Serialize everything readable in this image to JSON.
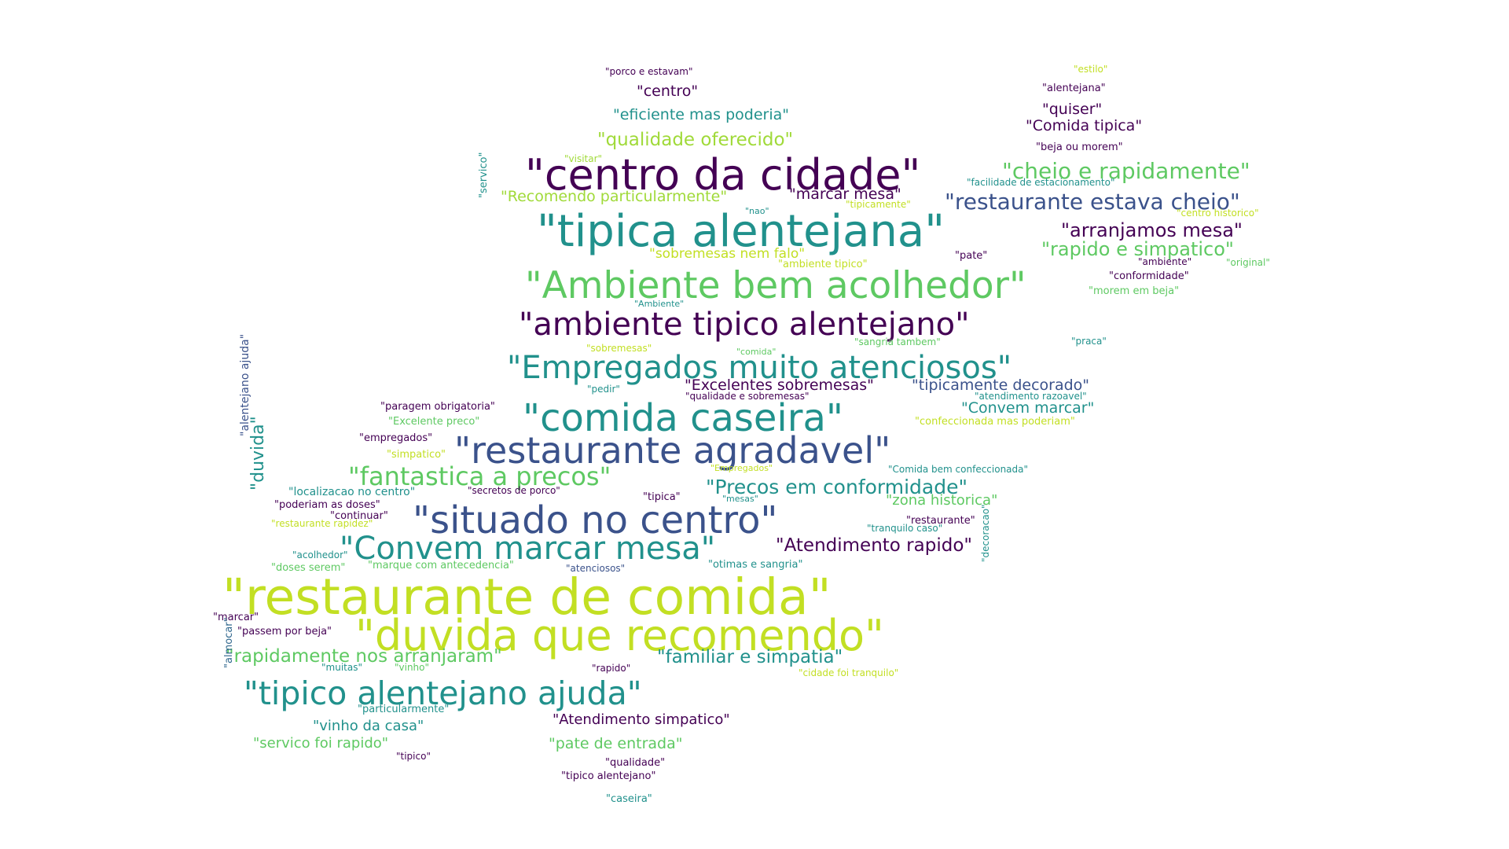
{
  "palette": {
    "p0": "#440154",
    "p1": "#3b528b",
    "p2": "#21918c",
    "p3": "#5ec962",
    "p4": "#c2df23",
    "p5": "#a0da39",
    "p6": "#31688e",
    "p7": "#482878"
  },
  "words": [
    {
      "text": "\"restaurante de comida\"",
      "color": "p4"
    },
    {
      "text": "\"duvida que recomendo\"",
      "color": "p4"
    },
    {
      "text": "\"tipica alentejana\"",
      "color": "p2"
    },
    {
      "text": "\"centro da cidade\"",
      "color": "p0"
    },
    {
      "text": "\"Ambiente bem acolhedor\"",
      "color": "p3"
    },
    {
      "text": "\"comida caseira\"",
      "color": "p2"
    },
    {
      "text": "\"restaurante agradavel\"",
      "color": "p1"
    },
    {
      "text": "\"situado no centro\"",
      "color": "p1"
    },
    {
      "text": "\"Empregados muito atenciosos\"",
      "color": "p2"
    },
    {
      "text": "\"ambiente tipico alentejano\"",
      "color": "p0"
    },
    {
      "text": "\"Convem marcar mesa\"",
      "color": "p2"
    },
    {
      "text": "\"tipico alentejano ajuda\"",
      "color": "p2"
    },
    {
      "text": "\"fantastica a precos\"",
      "color": "p3"
    },
    {
      "text": "\"cheio e rapidamente\"",
      "color": "p3"
    },
    {
      "text": "\"restaurante estava cheio\"",
      "color": "p1"
    },
    {
      "text": "\"arranjamos mesa\"",
      "color": "p0"
    },
    {
      "text": "\"rapido e simpatico\"",
      "color": "p3"
    },
    {
      "text": "\"Precos em conformidade\"",
      "color": "p2"
    },
    {
      "text": "\"Atendimento rapido\"",
      "color": "p0"
    },
    {
      "text": "\"familiar e simpatia\"",
      "color": "p2"
    },
    {
      "text": "\"rapidamente nos arranjaram\"",
      "color": "p3"
    },
    {
      "text": "\"qualidade oferecido\"",
      "color": "p5"
    },
    {
      "text": "\"eficiente mas poderia\"",
      "color": "p2"
    },
    {
      "text": "\"centro\"",
      "color": "p0"
    },
    {
      "text": "\"Comida tipica\"",
      "color": "p0"
    },
    {
      "text": "\"quiser\"",
      "color": "p0"
    },
    {
      "text": "\"Recomendo particularmente\"",
      "color": "p5"
    },
    {
      "text": "\"marcar mesa\"",
      "color": "p0"
    },
    {
      "text": "\"sobremesas nem falo\"",
      "color": "p4"
    },
    {
      "text": "\"Excelentes sobremesas\"",
      "color": "p0"
    },
    {
      "text": "\"tipicamente decorado\"",
      "color": "p1"
    },
    {
      "text": "\"Convem marcar\"",
      "color": "p2"
    },
    {
      "text": "\"zona historica\"",
      "color": "p3"
    },
    {
      "text": "\"vinho da casa\"",
      "color": "p2"
    },
    {
      "text": "\"servico foi rapido\"",
      "color": "p3"
    },
    {
      "text": "\"pate de entrada\"",
      "color": "p3"
    },
    {
      "text": "\"Atendimento simpatico\"",
      "color": "p0"
    },
    {
      "text": "\"duvida\"",
      "color": "p2"
    },
    {
      "text": "\"porco e estavam\"",
      "color": "p0"
    },
    {
      "text": "\"estilo\"",
      "color": "p4"
    },
    {
      "text": "\"alentejana\"",
      "color": "p0"
    },
    {
      "text": "\"beja ou morem\"",
      "color": "p0"
    },
    {
      "text": "\"visitar\"",
      "color": "p5"
    },
    {
      "text": "\"facilidade de estacionamento\"",
      "color": "p2"
    },
    {
      "text": "\"tipicamente\"",
      "color": "p4"
    },
    {
      "text": "\"centro historico\"",
      "color": "p4"
    },
    {
      "text": "\"nao\"",
      "color": "p2"
    },
    {
      "text": "\"servico\"",
      "color": "p2"
    },
    {
      "text": "\"pate\"",
      "color": "p0"
    },
    {
      "text": "\"ambiente tipico\"",
      "color": "p4"
    },
    {
      "text": "\"ambiente\"",
      "color": "p0"
    },
    {
      "text": "\"original\"",
      "color": "p3"
    },
    {
      "text": "\"conformidade\"",
      "color": "p0"
    },
    {
      "text": "\"morem em beja\"",
      "color": "p3"
    },
    {
      "text": "\"Ambiente\"",
      "color": "p2"
    },
    {
      "text": "\"sangria tambem\"",
      "color": "p3"
    },
    {
      "text": "\"praca\"",
      "color": "p2"
    },
    {
      "text": "\"sobremesas\"",
      "color": "p4"
    },
    {
      "text": "\"comida\"",
      "color": "p3"
    },
    {
      "text": "\"pedir\"",
      "color": "p2"
    },
    {
      "text": "\"qualidade e sobremesas\"",
      "color": "p0"
    },
    {
      "text": "\"atendimento razoavel\"",
      "color": "p2"
    },
    {
      "text": "\"paragem obrigatoria\"",
      "color": "p0"
    },
    {
      "text": "\"Excelente preco\"",
      "color": "p3"
    },
    {
      "text": "\"confeccionada mas poderiam\"",
      "color": "p4"
    },
    {
      "text": "\"empregados\"",
      "color": "p0"
    },
    {
      "text": "\"simpatico\"",
      "color": "p4"
    },
    {
      "text": "\"Empregados\"",
      "color": "p4"
    },
    {
      "text": "\"Comida bem confeccionada\"",
      "color": "p2"
    },
    {
      "text": "\"localizacao no centro\"",
      "color": "p2"
    },
    {
      "text": "\"secretos de porco\"",
      "color": "p0"
    },
    {
      "text": "\"tipica\"",
      "color": "p0"
    },
    {
      "text": "\"mesas\"",
      "color": "p2"
    },
    {
      "text": "\"poderiam as doses\"",
      "color": "p0"
    },
    {
      "text": "\"continuar\"",
      "color": "p0"
    },
    {
      "text": "\"restaurante rapidez\"",
      "color": "p4"
    },
    {
      "text": "\"restaurante\"",
      "color": "p0"
    },
    {
      "text": "\"tranquilo caso\"",
      "color": "p2"
    },
    {
      "text": "\"alentejano ajuda\"",
      "color": "p1"
    },
    {
      "text": "\"acolhedor\"",
      "color": "p2"
    },
    {
      "text": "\"doses serem\"",
      "color": "p3"
    },
    {
      "text": "\"marque com antecedencia\"",
      "color": "p3"
    },
    {
      "text": "\"atenciosos\"",
      "color": "p1"
    },
    {
      "text": "\"otimas e sangria\"",
      "color": "p2"
    },
    {
      "text": "\"decoracao\"",
      "color": "p2"
    },
    {
      "text": "\"marcar\"",
      "color": "p0"
    },
    {
      "text": "\"passem por beja\"",
      "color": "p0"
    },
    {
      "text": "\"muitas\"",
      "color": "p2"
    },
    {
      "text": "\"vinho\"",
      "color": "p3"
    },
    {
      "text": "\"rapido\"",
      "color": "p0"
    },
    {
      "text": "\"cidade foi tranquilo\"",
      "color": "p4"
    },
    {
      "text": "\"almocar\"",
      "color": "p6"
    },
    {
      "text": "\"particularmente\"",
      "color": "p2"
    },
    {
      "text": "\"tipico\"",
      "color": "p0"
    },
    {
      "text": "\"qualidade\"",
      "color": "p0"
    },
    {
      "text": "\"tipico alentejano\"",
      "color": "p0"
    },
    {
      "text": "\"caseira\"",
      "color": "p2"
    }
  ]
}
